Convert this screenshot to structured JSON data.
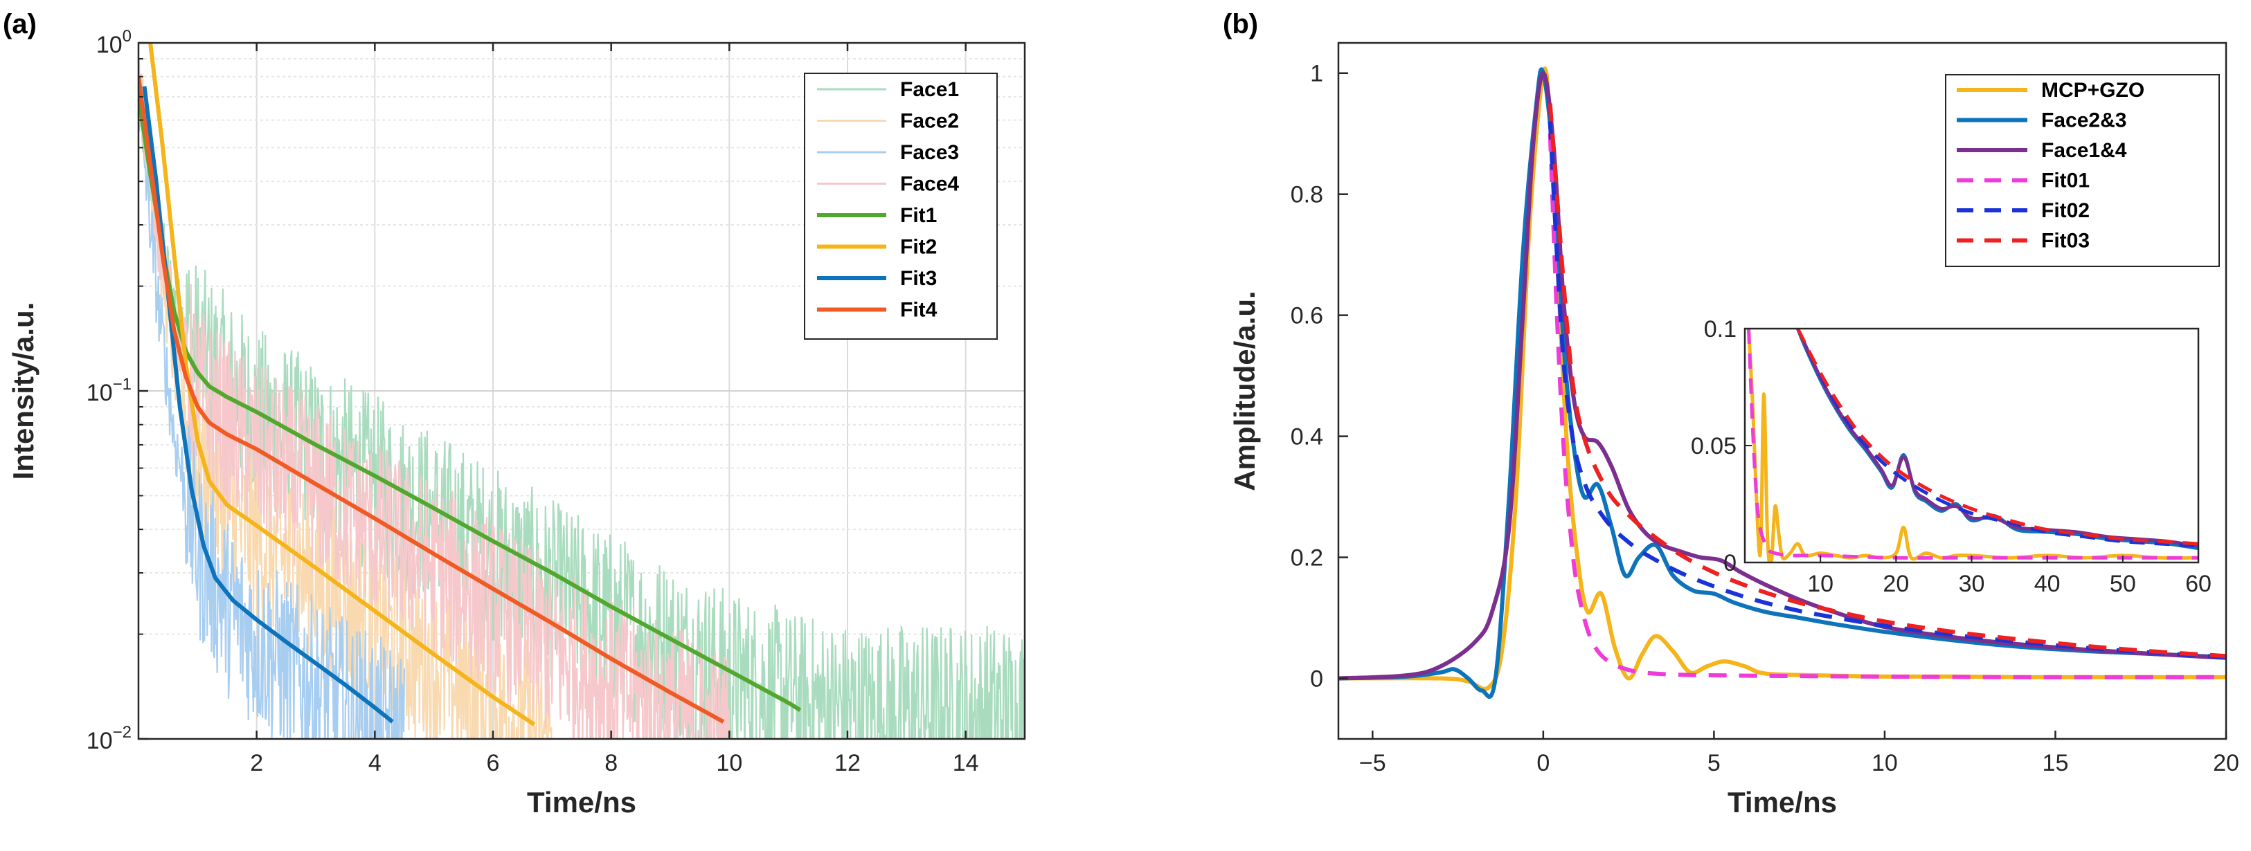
{
  "chart_data": [
    {
      "type": "line",
      "panel_label": "(a)",
      "xlabel": "Time/ns",
      "ylabel": "Intensity/a.u.",
      "xlim": [
        0.0,
        15.0
      ],
      "ylim": [
        0.01,
        1.0
      ],
      "yscale": "log",
      "grid": true,
      "legend_position": "top-right",
      "x_ticks": [
        2,
        4,
        6,
        8,
        10,
        12,
        14
      ],
      "x_tick_labels": [
        "2",
        "4",
        "6",
        "8",
        "10",
        "12",
        "14"
      ],
      "y_ticks": [
        0.01,
        0.1,
        1.0
      ],
      "y_tick_labels": [
        {
          "base": "10",
          "exp": "−2"
        },
        {
          "base": "10",
          "exp": "−1"
        },
        {
          "base": "10",
          "exp": "0"
        }
      ],
      "series": [
        {
          "name": "Face1",
          "color": "#a9dcbe",
          "style": "noisy",
          "x": [
            0.0,
            0.3,
            0.6,
            1.0,
            1.5,
            2,
            3,
            4,
            5,
            6,
            7,
            8,
            9,
            10,
            11,
            12,
            13,
            14,
            15
          ],
          "y": [
            0.7,
            0.3,
            0.18,
            0.13,
            0.105,
            0.085,
            0.067,
            0.054,
            0.043,
            0.034,
            0.027,
            0.022,
            0.018,
            0.015,
            0.013,
            0.012,
            0.012,
            0.012,
            0.012
          ]
        },
        {
          "name": "Face2",
          "color": "#f9d9b0",
          "style": "noisy",
          "x": [
            0.0,
            0.3,
            0.6,
            1.0,
            1.5,
            2,
            3,
            4,
            5,
            6,
            7
          ],
          "y": [
            0.8,
            0.3,
            0.12,
            0.065,
            0.045,
            0.038,
            0.029,
            0.021,
            0.016,
            0.012,
            0.01
          ]
        },
        {
          "name": "Face3",
          "color": "#a7cdf0",
          "style": "noisy",
          "x": [
            0.0,
            0.3,
            0.6,
            1.0,
            1.5,
            2,
            3,
            4,
            4.5
          ],
          "y": [
            0.7,
            0.2,
            0.075,
            0.035,
            0.024,
            0.019,
            0.014,
            0.011,
            0.01
          ]
        },
        {
          "name": "Face4",
          "color": "#f6c8cc",
          "style": "noisy",
          "x": [
            0.0,
            0.3,
            0.6,
            1.0,
            1.5,
            2,
            3,
            4,
            5,
            6,
            7,
            8,
            9,
            10
          ],
          "y": [
            0.75,
            0.3,
            0.16,
            0.1,
            0.078,
            0.067,
            0.052,
            0.04,
            0.031,
            0.024,
            0.018,
            0.014,
            0.012,
            0.01
          ]
        },
        {
          "name": "Fit1",
          "color": "#52a82f",
          "style": "solid",
          "x": [
            0.0,
            0.2,
            0.4,
            0.6,
            0.8,
            1.0,
            1.2,
            1.5,
            2,
            3,
            4,
            5,
            6,
            7,
            8,
            9,
            10,
            11,
            11.2
          ],
          "y": [
            0.7,
            0.42,
            0.26,
            0.17,
            0.13,
            0.113,
            0.103,
            0.096,
            0.087,
            0.07,
            0.057,
            0.046,
            0.037,
            0.03,
            0.024,
            0.0194,
            0.0157,
            0.0127,
            0.0121
          ]
        },
        {
          "name": "Fit2",
          "color": "#f4b41a",
          "style": "solid",
          "x": [
            0.2,
            0.4,
            0.6,
            0.8,
            1.0,
            1.2,
            1.5,
            2,
            3,
            4,
            5,
            6,
            6.7
          ],
          "y": [
            1.0,
            0.52,
            0.25,
            0.12,
            0.072,
            0.055,
            0.047,
            0.041,
            0.031,
            0.0233,
            0.0175,
            0.0132,
            0.011
          ]
        },
        {
          "name": "Fit3",
          "color": "#0d73bb",
          "style": "solid",
          "x": [
            0.1,
            0.3,
            0.5,
            0.7,
            0.9,
            1.1,
            1.3,
            1.6,
            2,
            2.5,
            3,
            3.5,
            4,
            4.3
          ],
          "y": [
            0.75,
            0.4,
            0.19,
            0.09,
            0.052,
            0.036,
            0.029,
            0.025,
            0.022,
            0.019,
            0.0165,
            0.0143,
            0.0123,
            0.0112
          ]
        },
        {
          "name": "Fit4",
          "color": "#f05a24",
          "style": "solid",
          "x": [
            0.0,
            0.2,
            0.4,
            0.6,
            0.8,
            1.0,
            1.2,
            1.5,
            2,
            3,
            4,
            5,
            6,
            7,
            8,
            9,
            9.9
          ],
          "y": [
            0.8,
            0.45,
            0.25,
            0.15,
            0.11,
            0.09,
            0.081,
            0.075,
            0.068,
            0.054,
            0.043,
            0.034,
            0.027,
            0.0215,
            0.017,
            0.0136,
            0.0112
          ]
        }
      ]
    },
    {
      "type": "line",
      "panel_label": "(b)",
      "xlabel": "Time/ns",
      "ylabel": "Amplitude/a.u.",
      "xlim": [
        -6.0,
        20.0
      ],
      "ylim": [
        -0.1,
        1.05
      ],
      "grid": false,
      "legend_position": "top-right",
      "x_ticks": [
        -5,
        0,
        5,
        10,
        15,
        20
      ],
      "x_tick_labels": [
        "−5",
        "0",
        "5",
        "10",
        "15",
        "20"
      ],
      "y_ticks": [
        0,
        0.2,
        0.4,
        0.6,
        0.8,
        1
      ],
      "y_tick_labels": [
        "0",
        "0.2",
        "0.4",
        "0.6",
        "0.8",
        "1"
      ],
      "series": [
        {
          "name": "MCP+GZO",
          "color": "#f4b41a",
          "style": "solid",
          "x": [
            -6,
            -3,
            -2.2,
            -1.6,
            -1.2,
            -0.8,
            -0.4,
            0,
            0.2,
            0.4,
            0.7,
            1.0,
            1.3,
            1.7,
            2.1,
            2.5,
            2.9,
            3.3,
            3.8,
            4.3,
            4.8,
            5.3,
            5.9,
            6.5,
            8,
            10,
            12,
            14,
            16,
            18,
            20
          ],
          "y": [
            0,
            0,
            -0.005,
            -0.015,
            0.05,
            0.3,
            0.75,
            1.0,
            0.92,
            0.7,
            0.38,
            0.2,
            0.11,
            0.14,
            0.05,
            0.0,
            0.04,
            0.07,
            0.045,
            0.01,
            0.02,
            0.028,
            0.02,
            0.008,
            0.005,
            0.003,
            0.003,
            0.002,
            0.002,
            0.002,
            0.002
          ]
        },
        {
          "name": "Face2&3",
          "color": "#0d73bb",
          "style": "solid",
          "x": [
            -6,
            -4,
            -3,
            -2.6,
            -2.2,
            -1.8,
            -1.4,
            -1.0,
            -0.6,
            -0.2,
            0,
            0.3,
            0.6,
            0.9,
            1.2,
            1.6,
            2.0,
            2.4,
            2.8,
            3.3,
            3.8,
            4.4,
            5.0,
            5.6,
            6.5,
            7.5,
            8.5,
            10,
            12,
            14,
            16,
            18,
            20
          ],
          "y": [
            0,
            0.003,
            0.01,
            0.015,
            0.0,
            -0.02,
            0.0,
            0.3,
            0.7,
            0.95,
            1.0,
            0.85,
            0.55,
            0.38,
            0.3,
            0.32,
            0.25,
            0.17,
            0.2,
            0.22,
            0.17,
            0.145,
            0.14,
            0.125,
            0.11,
            0.1,
            0.09,
            0.077,
            0.063,
            0.052,
            0.045,
            0.04,
            0.035
          ]
        },
        {
          "name": "Face1&4",
          "color": "#7b2f8e",
          "style": "solid",
          "x": [
            -6,
            -4,
            -3,
            -2,
            -1.5,
            -1.0,
            -0.6,
            -0.3,
            0,
            0.3,
            0.6,
            0.9,
            1.2,
            1.6,
            2.0,
            2.5,
            3.0,
            3.5,
            4.0,
            4.6,
            5.2,
            5.8,
            6.5,
            7.5,
            8.5,
            10,
            12,
            14,
            16,
            18,
            20
          ],
          "y": [
            0,
            0.005,
            0.02,
            0.06,
            0.11,
            0.25,
            0.6,
            0.88,
            1.0,
            0.88,
            0.62,
            0.46,
            0.4,
            0.39,
            0.35,
            0.28,
            0.24,
            0.22,
            0.21,
            0.2,
            0.195,
            0.175,
            0.155,
            0.13,
            0.11,
            0.085,
            0.068,
            0.056,
            0.047,
            0.04,
            0.034
          ]
        },
        {
          "name": "Fit01",
          "color": "#ef3bd8",
          "style": "dashed",
          "x": [
            0.2,
            0.4,
            0.6,
            0.8,
            1.0,
            1.3,
            1.6,
            2.0,
            2.5,
            3.0,
            4.0,
            5.0,
            7.0,
            10,
            14,
            20
          ],
          "y": [
            0.9,
            0.6,
            0.38,
            0.24,
            0.15,
            0.08,
            0.045,
            0.025,
            0.014,
            0.009,
            0.006,
            0.005,
            0.004,
            0.003,
            0.002,
            0.002
          ]
        },
        {
          "name": "Fit02",
          "color": "#1a33d8",
          "style": "dashed",
          "x": [
            0.2,
            0.4,
            0.6,
            0.8,
            1.0,
            1.3,
            1.6,
            2.0,
            2.5,
            3.0,
            4.0,
            5.0,
            6.0,
            7.0,
            8.0,
            10,
            12,
            14,
            16,
            18,
            20
          ],
          "y": [
            0.92,
            0.7,
            0.52,
            0.42,
            0.36,
            0.31,
            0.28,
            0.25,
            0.225,
            0.205,
            0.175,
            0.152,
            0.133,
            0.118,
            0.106,
            0.087,
            0.072,
            0.06,
            0.05,
            0.042,
            0.035
          ]
        },
        {
          "name": "Fit03",
          "color": "#ee2020",
          "style": "dashed",
          "x": [
            0.2,
            0.4,
            0.6,
            0.8,
            1.0,
            1.3,
            1.6,
            2.0,
            2.5,
            3.0,
            4.0,
            5.0,
            6.0,
            7.0,
            8.0,
            10,
            12,
            14,
            16,
            18,
            20
          ],
          "y": [
            0.95,
            0.8,
            0.65,
            0.52,
            0.44,
            0.38,
            0.34,
            0.3,
            0.27,
            0.245,
            0.205,
            0.175,
            0.152,
            0.133,
            0.118,
            0.094,
            0.077,
            0.064,
            0.053,
            0.044,
            0.037
          ]
        }
      ],
      "inset": {
        "xlim": [
          0.0,
          60.0
        ],
        "ylim": [
          0.0,
          0.1
        ],
        "x_ticks": [
          10,
          20,
          30,
          40,
          50,
          60
        ],
        "x_tick_labels": [
          "10",
          "20",
          "30",
          "40",
          "50",
          "60"
        ],
        "y_ticks": [
          0,
          0.05,
          0.1
        ],
        "y_tick_labels": [
          "0",
          "0.05",
          "0.1"
        ],
        "series": [
          {
            "name": "MCP+GZO",
            "color": "#f4b41a",
            "style": "solid",
            "x": [
              0.5,
              1.0,
              2.0,
              2.5,
              3.0,
              3.5,
              4.0,
              4.5,
              5.0,
              6,
              7,
              8,
              10,
              12,
              14,
              16,
              18,
              20,
              21,
              22,
              24,
              26,
              28,
              30,
              35,
              40,
              45,
              50,
              55,
              60
            ],
            "y": [
              0.1,
              0.07,
              0.003,
              0.072,
              0.01,
              0.0,
              0.024,
              0.012,
              0.002,
              0.004,
              0.008,
              0.003,
              0.004,
              0.003,
              0.002,
              0.003,
              0.002,
              0.004,
              0.015,
              0.002,
              0.004,
              0.002,
              0.003,
              0.003,
              0.002,
              0.003,
              0.002,
              0.003,
              0.002,
              0.002
            ]
          },
          {
            "name": "Face2&3",
            "color": "#0d73bb",
            "style": "solid",
            "x": [
              7,
              8,
              10,
              12,
              14,
              16,
              18,
              19.5,
              21,
              22.5,
              24,
              26,
              28,
              30,
              33,
              36,
              40,
              44,
              48,
              52,
              56,
              60
            ],
            "y": [
              0.1,
              0.092,
              0.078,
              0.066,
              0.056,
              0.048,
              0.039,
              0.032,
              0.046,
              0.03,
              0.026,
              0.022,
              0.025,
              0.018,
              0.02,
              0.014,
              0.013,
              0.012,
              0.01,
              0.009,
              0.008,
              0.006
            ]
          },
          {
            "name": "Face1&4",
            "color": "#7b2f8e",
            "style": "solid",
            "x": [
              7,
              8,
              10,
              12,
              14,
              16,
              18,
              19.5,
              21,
              22.5,
              24,
              26,
              28,
              30,
              33,
              36,
              40,
              44,
              48,
              52,
              56,
              60
            ],
            "y": [
              0.1,
              0.093,
              0.079,
              0.067,
              0.057,
              0.049,
              0.04,
              0.033,
              0.045,
              0.031,
              0.027,
              0.023,
              0.024,
              0.019,
              0.019,
              0.015,
              0.014,
              0.013,
              0.011,
              0.01,
              0.009,
              0.007
            ]
          },
          {
            "name": "Fit01",
            "color": "#ef3bd8",
            "style": "dashed",
            "x": [
              0.5,
              1.0,
              1.5,
              2.0,
              3.0,
              4.0,
              6.0,
              10,
              20,
              30,
              40,
              50,
              60
            ],
            "y": [
              0.1,
              0.06,
              0.03,
              0.015,
              0.006,
              0.004,
              0.003,
              0.003,
              0.002,
              0.002,
              0.002,
              0.002,
              0.002
            ]
          },
          {
            "name": "Fit02",
            "color": "#1a33d8",
            "style": "dashed",
            "x": [
              7,
              10,
              13,
              16,
              20,
              25,
              30,
              35,
              40,
              45,
              50,
              55,
              60
            ],
            "y": [
              0.1,
              0.08,
              0.063,
              0.05,
              0.038,
              0.028,
              0.021,
              0.017,
              0.013,
              0.011,
              0.009,
              0.008,
              0.007
            ]
          },
          {
            "name": "Fit03",
            "color": "#ee2020",
            "style": "dashed",
            "x": [
              7,
              10,
              13,
              16,
              20,
              25,
              30,
              35,
              40,
              45,
              50,
              55,
              60
            ],
            "y": [
              0.1,
              0.081,
              0.065,
              0.052,
              0.04,
              0.03,
              0.023,
              0.018,
              0.014,
              0.012,
              0.01,
              0.009,
              0.008
            ]
          }
        ]
      }
    }
  ]
}
